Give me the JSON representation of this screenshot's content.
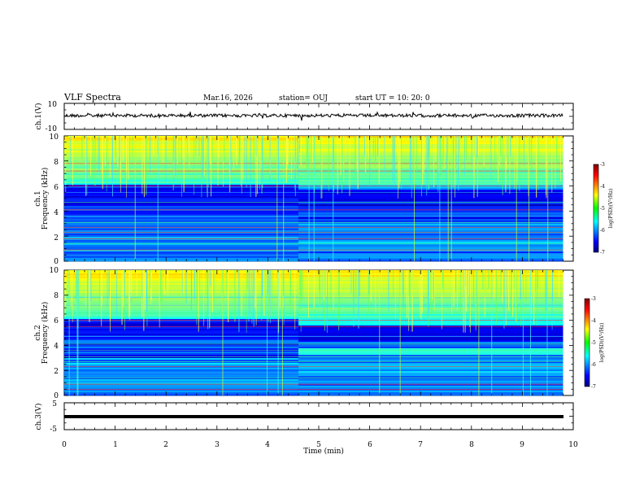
{
  "header": {
    "title": "VLF Spectra",
    "date": "Mar.16, 2026",
    "station": "station= OUJ",
    "start": "start  UT  =   10: 20: 0"
  },
  "chart_data": [
    {
      "type": "line",
      "title": "ch.1(V) waveform",
      "ylabel": "ch.1(V)",
      "ylim": [
        -10,
        10
      ],
      "yticks": [
        "10",
        "-10"
      ],
      "xlim": [
        0,
        10
      ],
      "series": [
        {
          "name": "ch.1",
          "baseline": 0
        }
      ]
    },
    {
      "type": "heatmap",
      "title": "ch.1 spectrogram",
      "ylabel": "ch.1\nFrequency (kHz)",
      "ylim": [
        0,
        10
      ],
      "yticks": [
        "0",
        "2",
        "4",
        "6",
        "8",
        "10"
      ],
      "xlim": [
        0,
        9.8
      ],
      "colorbar": {
        "label": "log(PSD)(V²/Hz)",
        "min": -7,
        "max": -3,
        "ticks": [
          "-3",
          "-4",
          "-5",
          "-6",
          "-7"
        ]
      }
    },
    {
      "type": "heatmap",
      "title": "ch.2 spectrogram",
      "ylabel": "ch.2\nFrequency (kHz)",
      "ylim": [
        0,
        10
      ],
      "yticks": [
        "0",
        "2",
        "4",
        "6",
        "8",
        "10"
      ],
      "xlim": [
        0,
        9.8
      ],
      "colorbar": {
        "label": "log(PSD)(V²/Hz)",
        "min": -7,
        "max": -3,
        "ticks": [
          "-3",
          "-4",
          "-5",
          "-6",
          "-7"
        ]
      }
    },
    {
      "type": "line",
      "title": "ch.3(V) waveform",
      "ylabel": "ch.3(V)",
      "ylim": [
        -5,
        5
      ],
      "yticks": [
        "5",
        "-5"
      ],
      "xlim": [
        0,
        10
      ],
      "series": [
        {
          "name": "ch.3",
          "baseline": -1
        }
      ]
    }
  ],
  "xaxis": {
    "label": "Time (min)",
    "ticks": [
      "0",
      "1",
      "2",
      "3",
      "4",
      "5",
      "6",
      "7",
      "8",
      "9",
      "10"
    ]
  },
  "labels": {
    "ch1_wave": "ch.1(V)",
    "ch1_spec": "ch.1",
    "ch2_spec": "ch.2",
    "freq": "Frequency (kHz)",
    "ch3_wave": "ch.3(V)",
    "cb1_units": "log(PSD)(V²/Hz)",
    "cb2_units": "log(PSD)(V²/Hz)"
  },
  "colors": {
    "black": "#000000",
    "jet_low": "#00007f",
    "jet_high": "#7f0000"
  }
}
